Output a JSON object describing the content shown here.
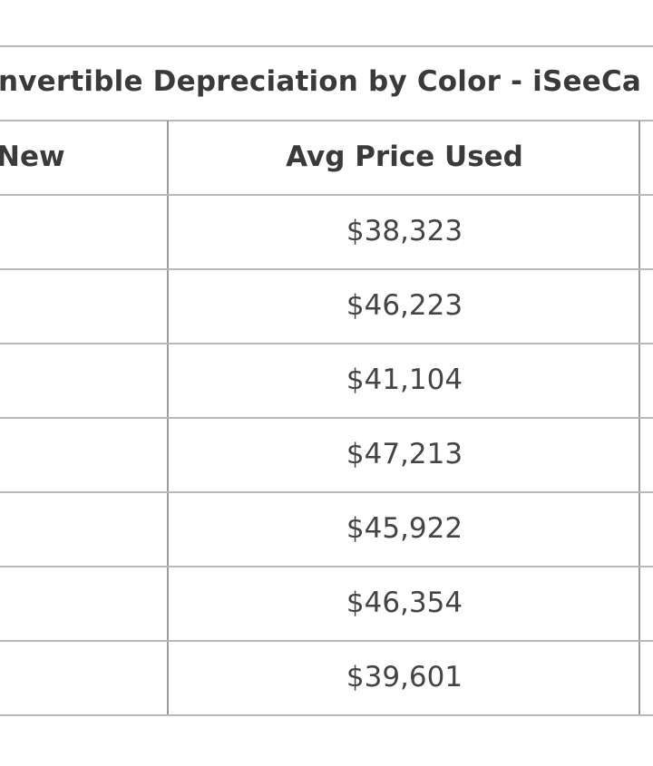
{
  "table": {
    "title": "nvertible Depreciation by Color - iSeeCa",
    "headers": [
      "New",
      "Avg Price Used"
    ],
    "rows": [
      "$38,323",
      "$46,223",
      "$41,104",
      "$47,213",
      "$45,922",
      "$46,354",
      "$39,601"
    ]
  }
}
